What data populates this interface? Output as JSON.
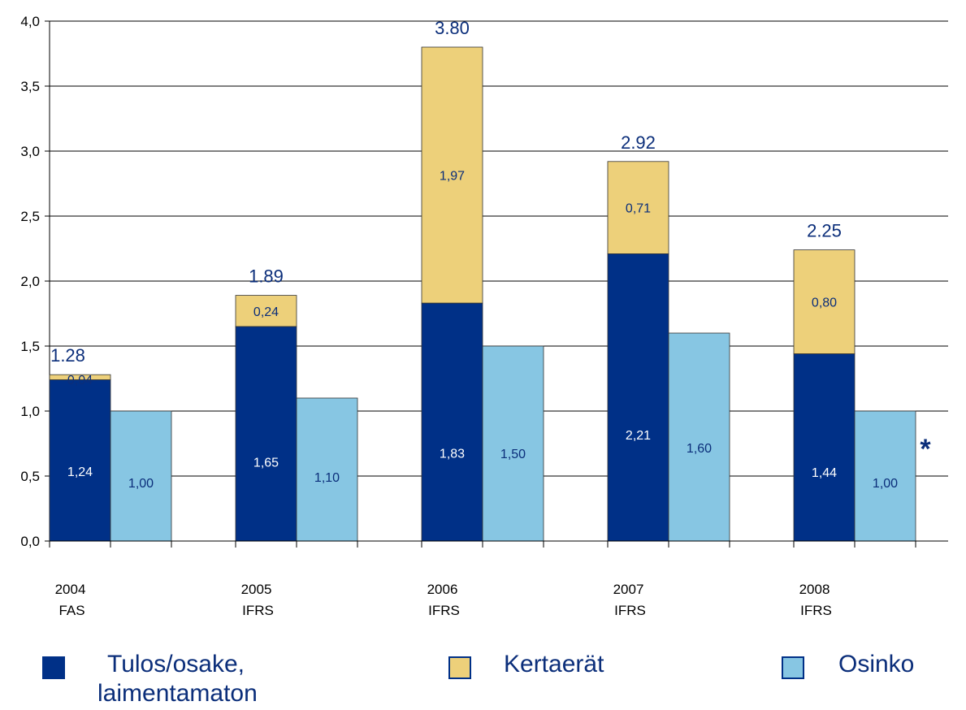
{
  "chart_data": {
    "type": "bar",
    "stacked_with_side_bar": true,
    "categories": [
      "2004",
      "2005",
      "2006",
      "2007",
      "2008"
    ],
    "category_sublabels": [
      "FAS",
      "IFRS",
      "IFRS",
      "IFRS",
      "IFRS"
    ],
    "ylim": [
      0,
      4.0
    ],
    "yticks": [
      "0,0",
      "0,5",
      "1,0",
      "1,5",
      "2,0",
      "2,5",
      "3,0",
      "3,5",
      "4,0"
    ],
    "grid": true,
    "series": [
      {
        "name": "Tulos/osake, laimentamaton",
        "stack": "a",
        "values": [
          1.24,
          1.65,
          1.83,
          2.21,
          1.44
        ],
        "labels": [
          "1,24",
          "1,65",
          "1,83",
          "2,21",
          "1,44"
        ],
        "color": "#003087"
      },
      {
        "name": "Kertaerät",
        "stack": "a",
        "values": [
          0.04,
          0.24,
          1.97,
          0.71,
          0.8
        ],
        "labels": [
          "0,04",
          "0,24",
          "1,97",
          "0,71",
          "0,80"
        ],
        "color": "#EDD07A"
      },
      {
        "name": "Osinko",
        "stack": "b",
        "values": [
          1.0,
          1.1,
          1.5,
          1.6,
          1.0
        ],
        "labels": [
          "1,00",
          "1,10",
          "1,50",
          "1,60",
          "1,00"
        ],
        "color": "#87C6E3"
      }
    ],
    "totals": [
      "1.28",
      "1.89",
      "3.80",
      "2.92",
      "2.25"
    ],
    "annotation": "*",
    "legend_position": "bottom"
  },
  "legend": {
    "item1_line1": "Tulos/osake,",
    "item1_line2": "laimentamaton",
    "item2": "Kertaerät",
    "item3": "Osinko"
  },
  "colors": {
    "dark_blue": "#003087",
    "tan": "#EDD07A",
    "light_blue": "#87C6E3",
    "label_blue": "#0b2e7a"
  }
}
